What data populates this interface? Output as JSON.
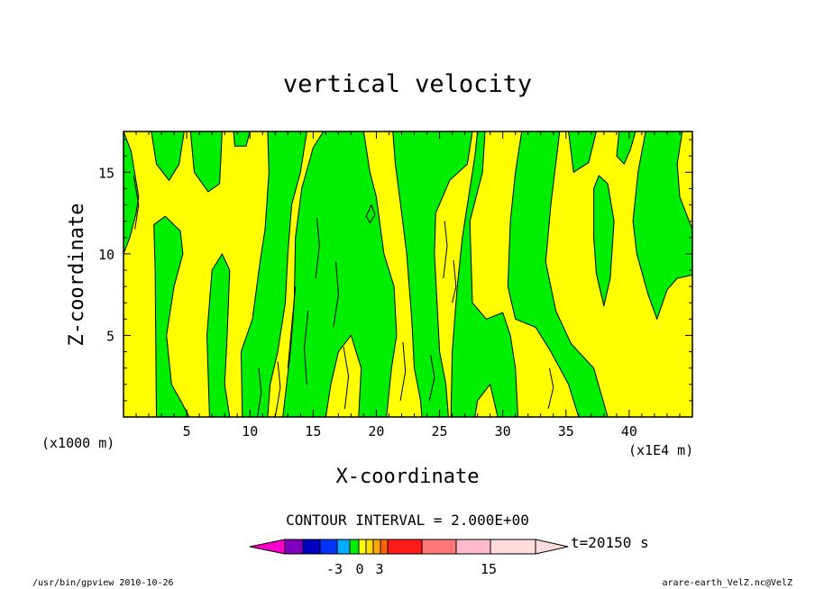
{
  "chart_data": {
    "type": "heatmap",
    "title": "vertical velocity",
    "xlabel": "X-coordinate",
    "ylabel": "Z-coordinate",
    "x_unit_label": "(x1E4 m)",
    "y_unit_label": "(x1000 m)",
    "xlim": [
      0,
      45
    ],
    "ylim": [
      0,
      17.5
    ],
    "x_ticks": [
      5,
      10,
      15,
      20,
      25,
      30,
      35,
      40
    ],
    "x_tick_labels": [
      "5",
      "10",
      "15",
      "20",
      "25",
      "30",
      "35",
      "40"
    ],
    "y_ticks": [
      5,
      10,
      15
    ],
    "y_tick_labels": [
      "5",
      "10",
      "15"
    ],
    "contour_interval_text": "CONTOUR INTERVAL = 2.000E+00",
    "contour_interval": 2.0,
    "field_colors": {
      "upward": "#ffff00",
      "downward": "#00ee00"
    },
    "colorbar": {
      "colors": [
        "#ff00cc",
        "#7f00bf",
        "#0000bf",
        "#0033ff",
        "#00aaff",
        "#00ee00",
        "#ffff00",
        "#ffdd00",
        "#ffaa00",
        "#ff6600",
        "#ff1a1a",
        "#ff7777",
        "#ffbbcc",
        "#ffdddd"
      ],
      "labels": [
        "-3",
        "0",
        "3",
        "15"
      ],
      "label_positions": [
        -3,
        0,
        3,
        15
      ]
    },
    "time_label": "t=20150 s",
    "green_regions": [
      [
        [
          0.0,
          17.5
        ],
        [
          0.6,
          16.3
        ],
        [
          1.2,
          13.5
        ],
        [
          1.0,
          12.5
        ],
        [
          0.5,
          11.0
        ],
        [
          0.0,
          10.0
        ]
      ],
      [
        [
          2.2,
          17.5
        ],
        [
          2.6,
          15.5
        ],
        [
          3.6,
          14.5
        ],
        [
          4.4,
          15.5
        ],
        [
          4.8,
          17.5
        ]
      ],
      [
        [
          5.3,
          17.5
        ],
        [
          5.6,
          15.0
        ],
        [
          6.7,
          13.8
        ],
        [
          7.6,
          14.3
        ],
        [
          7.8,
          17.5
        ]
      ],
      [
        [
          8.7,
          17.5
        ],
        [
          8.8,
          16.6
        ],
        [
          9.7,
          16.6
        ],
        [
          10.0,
          17.5
        ]
      ],
      [
        [
          2.6,
          0.0
        ],
        [
          2.5,
          9.0
        ],
        [
          2.4,
          11.8
        ],
        [
          3.3,
          12.3
        ],
        [
          4.5,
          11.4
        ],
        [
          4.7,
          10.0
        ],
        [
          4.0,
          8.0
        ],
        [
          3.4,
          5.0
        ],
        [
          3.8,
          2.0
        ],
        [
          4.8,
          0.6
        ],
        [
          5.2,
          0.0
        ]
      ],
      [
        [
          6.8,
          0.0
        ],
        [
          6.6,
          5.0
        ],
        [
          7.0,
          9.0
        ],
        [
          7.8,
          10.0
        ],
        [
          8.4,
          9.0
        ],
        [
          8.2,
          5.0
        ],
        [
          8.0,
          2.0
        ],
        [
          8.4,
          0.0
        ]
      ],
      [
        [
          9.4,
          0.0
        ],
        [
          9.3,
          4.0
        ],
        [
          10.2,
          6.0
        ],
        [
          10.8,
          9.5
        ],
        [
          11.2,
          11.5
        ],
        [
          11.5,
          15.0
        ],
        [
          11.4,
          17.5
        ],
        [
          14.5,
          17.5
        ],
        [
          14.0,
          15.0
        ],
        [
          13.3,
          13.0
        ],
        [
          13.0,
          10.0
        ],
        [
          12.8,
          7.0
        ],
        [
          12.2,
          4.0
        ],
        [
          11.6,
          2.0
        ],
        [
          11.4,
          0.0
        ]
      ],
      [
        [
          12.6,
          0.0
        ],
        [
          13.2,
          4.0
        ],
        [
          13.5,
          7.0
        ],
        [
          13.6,
          11.0
        ],
        [
          14.1,
          14.0
        ],
        [
          15.0,
          16.5
        ],
        [
          15.8,
          17.5
        ],
        [
          19.0,
          17.5
        ],
        [
          19.5,
          15.0
        ],
        [
          20.0,
          13.5
        ],
        [
          20.6,
          10.0
        ],
        [
          21.4,
          8.0
        ],
        [
          21.6,
          5.0
        ],
        [
          21.2,
          3.0
        ],
        [
          20.8,
          0.0
        ],
        [
          18.6,
          0.0
        ],
        [
          18.8,
          3.0
        ],
        [
          18.0,
          5.0
        ],
        [
          17.0,
          4.0
        ],
        [
          16.4,
          2.0
        ],
        [
          16.0,
          0.0
        ]
      ],
      [
        [
          19.2,
          12.3
        ],
        [
          19.6,
          13.0
        ],
        [
          19.9,
          12.4
        ],
        [
          19.5,
          11.9
        ]
      ],
      [
        [
          21.3,
          17.5
        ],
        [
          21.5,
          15.5
        ],
        [
          22.0,
          12.5
        ],
        [
          22.4,
          10.0
        ],
        [
          22.8,
          6.0
        ],
        [
          23.0,
          3.0
        ],
        [
          23.5,
          1.0
        ],
        [
          23.6,
          0.0
        ],
        [
          25.7,
          0.0
        ],
        [
          25.5,
          2.0
        ],
        [
          25.0,
          4.0
        ],
        [
          24.8,
          7.0
        ],
        [
          24.6,
          10.0
        ],
        [
          24.7,
          12.5
        ],
        [
          25.8,
          14.5
        ],
        [
          27.2,
          15.5
        ],
        [
          27.6,
          17.5
        ]
      ],
      [
        [
          28.6,
          17.5
        ],
        [
          28.4,
          15.0
        ],
        [
          27.4,
          12.0
        ],
        [
          27.6,
          7.0
        ],
        [
          28.7,
          6.0
        ],
        [
          30.0,
          6.4
        ],
        [
          30.6,
          5.0
        ],
        [
          31.0,
          3.0
        ],
        [
          31.2,
          0.0
        ],
        [
          29.6,
          0.0
        ],
        [
          29.0,
          2.0
        ],
        [
          28.0,
          1.0
        ],
        [
          27.8,
          0.0
        ],
        [
          25.9,
          0.0
        ],
        [
          26.0,
          4.0
        ],
        [
          26.4,
          8.0
        ],
        [
          26.8,
          11.0
        ],
        [
          27.3,
          13.5
        ],
        [
          27.8,
          16.0
        ],
        [
          28.0,
          17.5
        ]
      ],
      [
        [
          31.5,
          17.5
        ],
        [
          31.0,
          15.0
        ],
        [
          30.6,
          12.0
        ],
        [
          30.4,
          8.0
        ],
        [
          31.0,
          6.0
        ],
        [
          32.6,
          5.5
        ],
        [
          33.8,
          4.0
        ],
        [
          35.2,
          2.0
        ],
        [
          36.0,
          0.0
        ],
        [
          38.3,
          0.0
        ],
        [
          37.2,
          3.0
        ],
        [
          35.4,
          4.5
        ],
        [
          34.2,
          6.5
        ],
        [
          33.4,
          9.5
        ],
        [
          33.8,
          13.0
        ],
        [
          34.5,
          17.5
        ]
      ],
      [
        [
          35.2,
          17.5
        ],
        [
          35.6,
          15.0
        ],
        [
          36.8,
          15.6
        ],
        [
          37.4,
          17.5
        ]
      ],
      [
        [
          39.2,
          17.5
        ],
        [
          39.0,
          16.0
        ],
        [
          39.6,
          15.5
        ],
        [
          40.1,
          16.4
        ],
        [
          40.5,
          17.5
        ]
      ],
      [
        [
          37.2,
          14.0
        ],
        [
          37.6,
          14.8
        ],
        [
          38.3,
          14.3
        ],
        [
          38.8,
          12.0
        ],
        [
          38.5,
          8.5
        ],
        [
          38.0,
          6.8
        ],
        [
          37.4,
          8.8
        ],
        [
          37.2,
          11.0
        ]
      ],
      [
        [
          41.3,
          17.5
        ],
        [
          40.7,
          15.0
        ],
        [
          40.3,
          12.0
        ],
        [
          40.6,
          10.0
        ],
        [
          41.5,
          7.5
        ],
        [
          42.2,
          6.0
        ],
        [
          43.0,
          7.8
        ],
        [
          43.8,
          8.5
        ],
        [
          45.0,
          8.7
        ],
        [
          45.0,
          11.5
        ],
        [
          44.5,
          12.5
        ],
        [
          44.0,
          13.5
        ],
        [
          43.8,
          15.5
        ],
        [
          44.2,
          17.5
        ]
      ]
    ],
    "contour_lines": [
      [
        [
          10.6,
          0.0
        ],
        [
          10.9,
          1.5
        ],
        [
          10.7,
          3.0
        ]
      ],
      [
        [
          12.0,
          0.0
        ],
        [
          12.4,
          1.8
        ],
        [
          12.2,
          3.4
        ]
      ],
      [
        [
          13.0,
          3.0
        ],
        [
          13.3,
          5.5
        ],
        [
          13.6,
          8.0
        ]
      ],
      [
        [
          14.5,
          2.0
        ],
        [
          14.3,
          4.2
        ],
        [
          14.6,
          6.5
        ]
      ],
      [
        [
          15.2,
          8.5
        ],
        [
          15.5,
          10.5
        ],
        [
          15.3,
          12.2
        ]
      ],
      [
        [
          16.6,
          5.5
        ],
        [
          17.0,
          7.5
        ],
        [
          16.8,
          9.5
        ]
      ],
      [
        [
          17.5,
          0.5
        ],
        [
          17.8,
          2.5
        ],
        [
          17.4,
          4.3
        ]
      ],
      [
        [
          21.9,
          1.0
        ],
        [
          22.3,
          2.8
        ],
        [
          22.1,
          4.6
        ]
      ],
      [
        [
          24.2,
          1.0
        ],
        [
          24.6,
          2.4
        ],
        [
          24.3,
          3.8
        ]
      ],
      [
        [
          25.3,
          8.5
        ],
        [
          25.6,
          10.5
        ],
        [
          25.4,
          12.0
        ]
      ],
      [
        [
          26.0,
          7.0
        ],
        [
          26.3,
          8.0
        ],
        [
          26.1,
          9.6
        ]
      ],
      [
        [
          33.6,
          0.5
        ],
        [
          34.0,
          1.8
        ],
        [
          33.7,
          3.0
        ]
      ],
      [
        [
          0.9,
          11.5
        ],
        [
          1.2,
          13.0
        ],
        [
          0.8,
          14.8
        ]
      ]
    ]
  },
  "footer": {
    "left": "/usr/bin/gpview  2010-10-26",
    "right": "arare-earth_VelZ.nc@VelZ"
  }
}
